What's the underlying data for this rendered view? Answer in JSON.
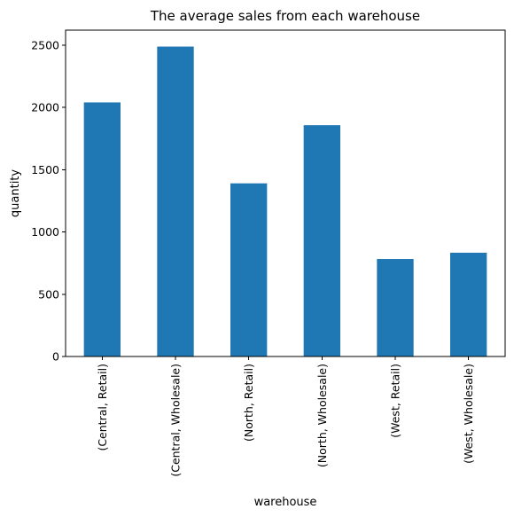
{
  "chart_data": {
    "type": "bar",
    "title": "The average sales from each warehouse",
    "xlabel": "warehouse",
    "ylabel": "quantity",
    "categories": [
      "(Central, Retail)",
      "(Central, Wholesale)",
      "(North, Retail)",
      "(North, Wholesale)",
      "(West, Retail)",
      "(West, Wholesale)"
    ],
    "values": [
      2040,
      2488,
      1390,
      1857,
      783,
      833
    ],
    "ylim": [
      0,
      2620
    ],
    "yticks": [
      0,
      500,
      1000,
      1500,
      2000,
      2500
    ],
    "grid": false,
    "legend": "none",
    "bar_color": "#1f77b4"
  }
}
